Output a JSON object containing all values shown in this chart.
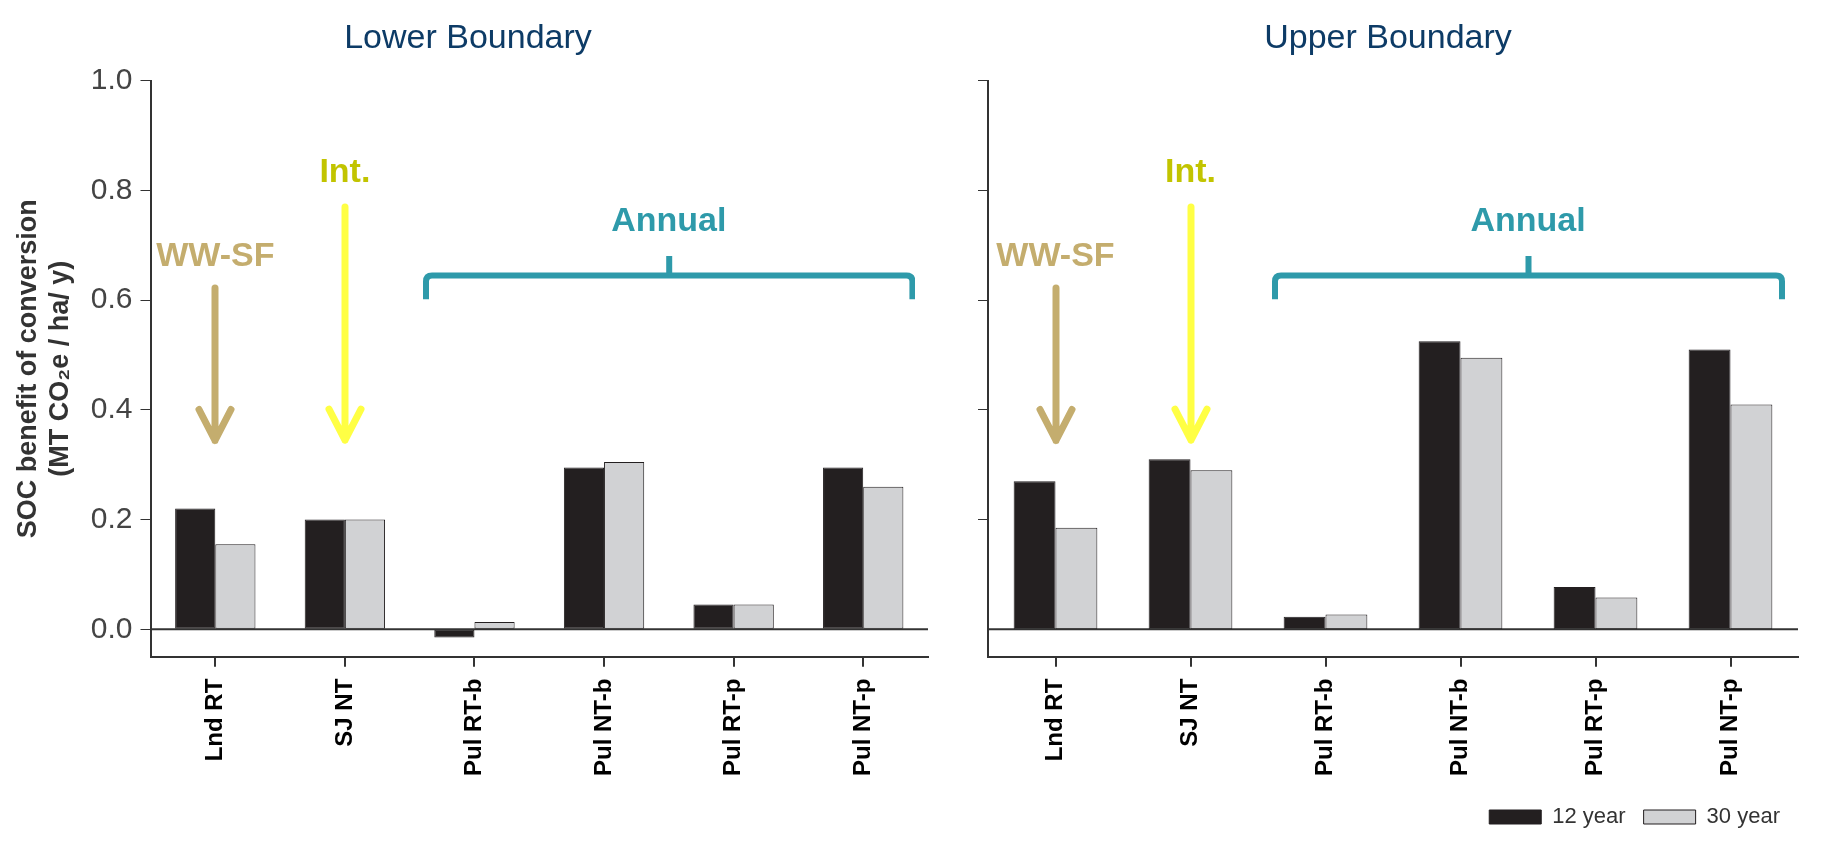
{
  "chart_data": [
    {
      "type": "bar",
      "title": "Lower Boundary",
      "ylabel": "SOC benefit of conversion\n(MT CO₂e / ha/ y)",
      "categories": [
        "Lnd RT",
        "SJ NT",
        "Pul RT-b",
        "Pul NT-b",
        "Pul RT-p",
        "Pul NT-p"
      ],
      "series": [
        {
          "color": "#231f20",
          "values": [
            0.22,
            0.2,
            -0.015,
            0.295,
            0.045,
            0.295
          ]
        },
        {
          "color": "#d1d2d4",
          "values": [
            0.155,
            0.2,
            0.013,
            0.305,
            0.045,
            0.26
          ]
        }
      ],
      "ylim": [
        -0.05,
        1.0
      ],
      "yticks": [
        {
          "value": 0,
          "label": "0.0"
        },
        0.2,
        0.4,
        0.6,
        0.8,
        {
          "value": 1.0,
          "label": "1.0"
        }
      ],
      "annotations": [
        "WW-SF",
        "Int.",
        "Annual"
      ],
      "ref_lines": [
        {
          "axis": "y",
          "value": 0
        }
      ],
      "legend": false
    },
    {
      "type": "bar",
      "title": "Upper Boundary",
      "categories": [
        "Lnd RT",
        "SJ NT",
        "Pul RT-b",
        "Pul NT-b",
        "Pul RT-p",
        "Pul NT-p"
      ],
      "series": [
        {
          "name": "12 year",
          "color": "#231f20",
          "values": [
            0.27,
            0.31,
            0.023,
            0.525,
            0.077,
            0.51
          ]
        },
        {
          "name": "30 year",
          "color": "#d1d2d4",
          "values": [
            0.185,
            0.29,
            0.027,
            0.495,
            0.058,
            0.41
          ]
        }
      ],
      "ylim": [
        -0.05,
        1.0
      ],
      "yticks": [
        0.2,
        0.4,
        0.6,
        0.8,
        1.0
      ],
      "tick_labels": "x",
      "annotations": [
        "WW-SF",
        "Int.",
        "Annual"
      ],
      "ref_lines": [
        {
          "axis": "y",
          "value": 0
        }
      ],
      "legend": "bottom right"
    }
  ]
}
